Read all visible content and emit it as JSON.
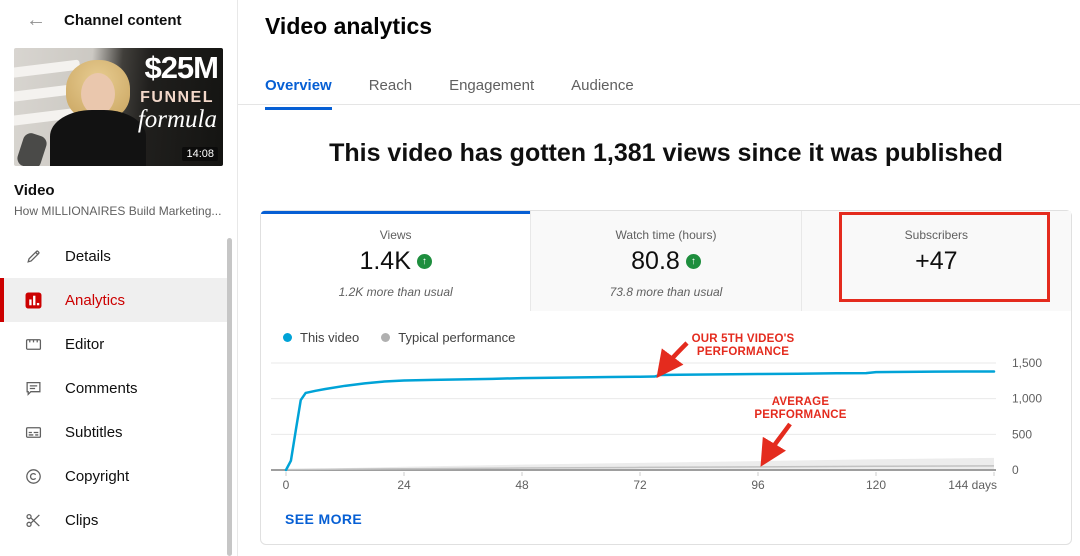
{
  "colors": {
    "accent_blue": "#065fd4",
    "line_blue": "#00a3d7",
    "typical_gray": "#bdbdbd",
    "positive_green": "#1e8e3e",
    "annotation_red": "#e42b1e",
    "selected_red": "#cc0000"
  },
  "icons": {
    "back": "←",
    "up_arrow": "↑"
  },
  "sidebar": {
    "back_title": "Channel content",
    "thumbnail": {
      "line1": "$25M",
      "line2": "FUNNEL",
      "line3": "formula",
      "duration": "14:08"
    },
    "video_kind": "Video",
    "video_title": "How MILLIONAIRES Build Marketing...",
    "items": [
      {
        "label": "Details",
        "icon": "pencil-icon",
        "selected": false
      },
      {
        "label": "Analytics",
        "icon": "bar-chart-icon",
        "selected": true
      },
      {
        "label": "Editor",
        "icon": "editor-icon",
        "selected": false
      },
      {
        "label": "Comments",
        "icon": "comment-icon",
        "selected": false
      },
      {
        "label": "Subtitles",
        "icon": "subtitles-icon",
        "selected": false
      },
      {
        "label": "Copyright",
        "icon": "copyright-icon",
        "selected": false
      },
      {
        "label": "Clips",
        "icon": "scissors-icon",
        "selected": false
      }
    ]
  },
  "header": {
    "title": "Video analytics",
    "tabs": [
      {
        "label": "Overview",
        "active": true
      },
      {
        "label": "Reach",
        "active": false
      },
      {
        "label": "Engagement",
        "active": false
      },
      {
        "label": "Audience",
        "active": false
      }
    ]
  },
  "headline": "This video has gotten 1,381 views since it was published",
  "metrics": [
    {
      "label": "Views",
      "value": "1.4K",
      "trend": "up",
      "subtext": "1.2K more than usual",
      "selected": true
    },
    {
      "label": "Watch time (hours)",
      "value": "80.8",
      "trend": "up",
      "subtext": "73.8 more than usual",
      "selected": false
    },
    {
      "label": "Subscribers",
      "value": "+47",
      "trend": "",
      "subtext": "",
      "selected": false,
      "highlighted": true
    }
  ],
  "annotations": {
    "top": {
      "line1": "OUR 5TH VIDEO'S",
      "line2": "PERFORMANCE"
    },
    "bottom": {
      "line1": "AVERAGE",
      "line2": "PERFORMANCE"
    }
  },
  "card": {
    "see_more": "SEE MORE"
  },
  "chart_data": {
    "type": "line",
    "title": "",
    "xlabel": "days",
    "ylabel": "views",
    "ylim": [
      0,
      1500
    ],
    "grid": true,
    "legend_position": "top-left",
    "legend": [
      {
        "name": "This video",
        "color": "#00a3d7"
      },
      {
        "name": "Typical performance",
        "color": "#b0b0b0"
      }
    ],
    "y_ticks": [
      0,
      500,
      1000,
      1500
    ],
    "y_tick_labels": [
      "0",
      "500",
      "1,000",
      "1,500"
    ],
    "x_ticks": [
      0,
      24,
      48,
      72,
      96,
      120,
      144
    ],
    "x_tick_labels": [
      "0",
      "24",
      "48",
      "72",
      "96",
      "120",
      "144 days"
    ],
    "series": [
      {
        "name": "This video",
        "x": [
          0,
          1,
          2,
          3,
          4,
          6,
          8,
          12,
          16,
          20,
          24,
          30,
          36,
          42,
          48,
          54,
          60,
          66,
          72,
          75,
          76,
          80,
          88,
          96,
          104,
          112,
          118,
          120,
          126,
          132,
          138,
          144
        ],
        "y": [
          0,
          130,
          560,
          980,
          1080,
          1110,
          1135,
          1180,
          1215,
          1240,
          1255,
          1263,
          1270,
          1278,
          1288,
          1293,
          1298,
          1304,
          1308,
          1310,
          1332,
          1335,
          1340,
          1346,
          1350,
          1356,
          1358,
          1372,
          1376,
          1379,
          1381,
          1381
        ]
      },
      {
        "name": "Typical performance",
        "x": [
          0,
          24,
          48,
          72,
          96,
          120,
          144
        ],
        "y": [
          5,
          18,
          28,
          36,
          44,
          52,
          58
        ]
      }
    ],
    "band_upper": [
      8,
      45,
      75,
      100,
      125,
      150,
      170
    ]
  }
}
